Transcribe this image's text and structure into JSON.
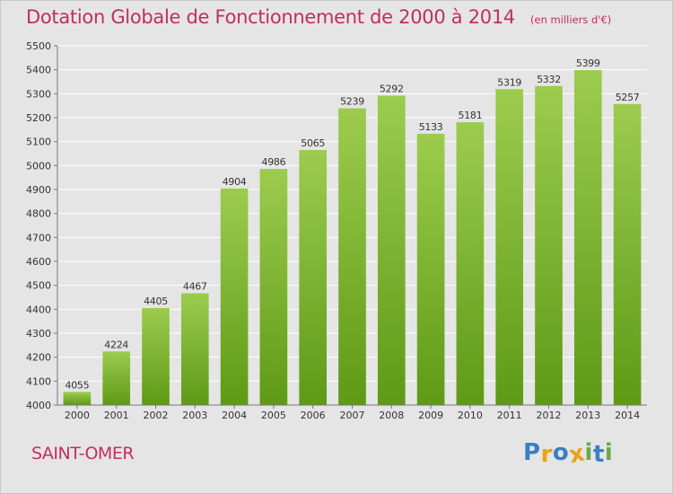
{
  "chart_data": {
    "type": "bar",
    "title": "Dotation Globale de Fonctionnement de 2000 à 2014",
    "unit_note": "(en milliers d'€)",
    "categories": [
      "2000",
      "2001",
      "2002",
      "2003",
      "2004",
      "2005",
      "2006",
      "2007",
      "2008",
      "2009",
      "2010",
      "2011",
      "2012",
      "2013",
      "2014"
    ],
    "values": [
      4055,
      4224,
      4405,
      4467,
      4904,
      4986,
      5065,
      5239,
      5292,
      5133,
      5181,
      5319,
      5332,
      5399,
      5257
    ],
    "ylim": [
      4000,
      5500
    ],
    "yticks": [
      4000,
      4100,
      4200,
      4300,
      4400,
      4500,
      4600,
      4700,
      4800,
      4900,
      5000,
      5100,
      5200,
      5300,
      5400,
      5500
    ],
    "xlabel": "",
    "ylabel": "",
    "grid": true,
    "bar_color_top": "#9ccc4e",
    "bar_color_bottom": "#5e9a16"
  },
  "commune": "SAINT-OMER",
  "logo": {
    "letters": [
      "P",
      "r",
      "o",
      "x",
      "i",
      "t",
      "i"
    ],
    "colors": [
      "#3a7fc4",
      "#e8a317",
      "#3a7fc4",
      "#e8a317",
      "#6aa84f",
      "#3a7fc4",
      "#6aa84f"
    ]
  }
}
